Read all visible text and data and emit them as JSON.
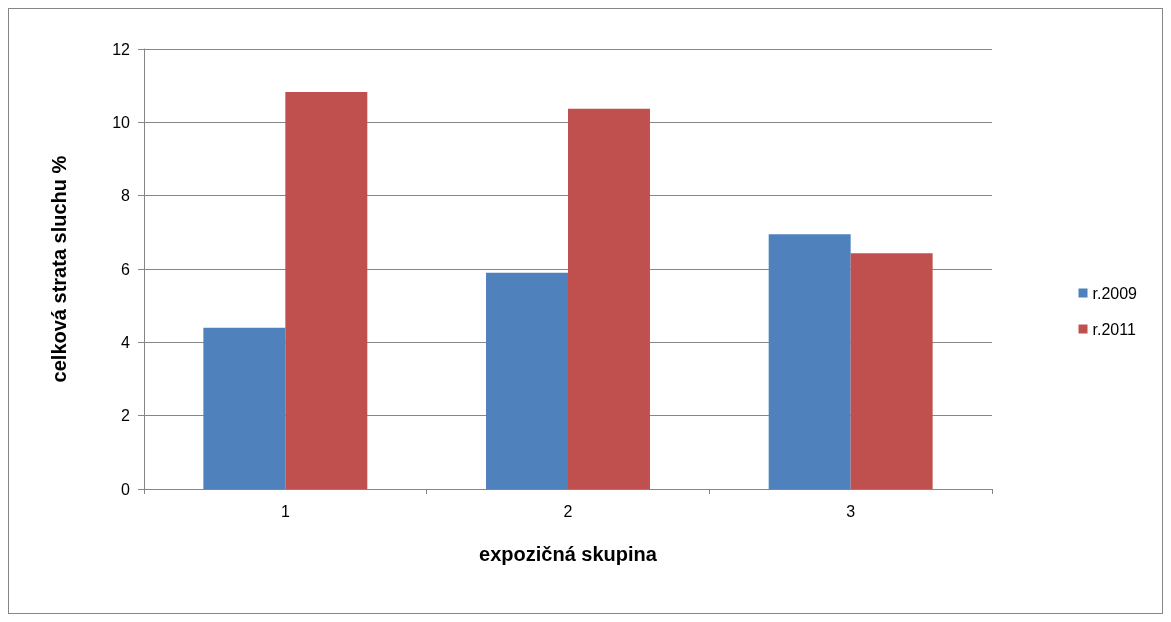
{
  "chart_data": {
    "type": "bar",
    "xlabel": "expozičná skupina",
    "ylabel": "celková strata sluchu %",
    "categories": [
      "1",
      "2",
      "3"
    ],
    "series": [
      {
        "name": "r.2009",
        "color": "#4f81bd",
        "values": [
          4.4,
          5.9,
          6.95
        ]
      },
      {
        "name": "r.2011",
        "color": "#c0504d",
        "values": [
          10.83,
          10.37,
          6.43
        ]
      }
    ],
    "ylim": [
      0,
      12
    ],
    "yticks": [
      0,
      2,
      4,
      6,
      8,
      10,
      12
    ],
    "grid": "y",
    "legend": "right"
  }
}
